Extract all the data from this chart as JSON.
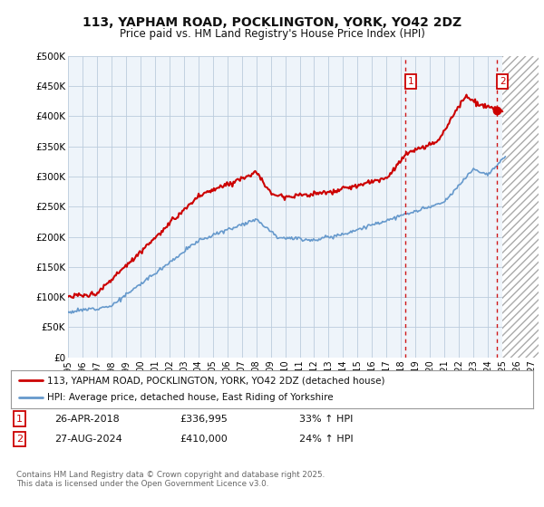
{
  "title": "113, YAPHAM ROAD, POCKLINGTON, YORK, YO42 2DZ",
  "subtitle": "Price paid vs. HM Land Registry's House Price Index (HPI)",
  "ylim": [
    0,
    500000
  ],
  "yticks": [
    0,
    50000,
    100000,
    150000,
    200000,
    250000,
    300000,
    350000,
    400000,
    450000,
    500000
  ],
  "ytick_labels": [
    "£0",
    "£50K",
    "£100K",
    "£150K",
    "£200K",
    "£250K",
    "£300K",
    "£350K",
    "£400K",
    "£450K",
    "£500K"
  ],
  "xlim_start": 1995.0,
  "xlim_end": 2027.5,
  "grid_color": "#bbccdd",
  "hpi_line_color": "#6699cc",
  "price_line_color": "#cc0000",
  "sale1_x": 2018.32,
  "sale1_y": 336995,
  "sale2_x": 2024.65,
  "sale2_y": 410000,
  "legend_line1": "113, YAPHAM ROAD, POCKLINGTON, YORK, YO42 2DZ (detached house)",
  "legend_line2": "HPI: Average price, detached house, East Riding of Yorkshire",
  "footer": "Contains HM Land Registry data © Crown copyright and database right 2025.\nThis data is licensed under the Open Government Licence v3.0.",
  "future_start": 2025.0,
  "light_blue_bg": "#ddeeff",
  "plot_bg": "#eef4fa"
}
